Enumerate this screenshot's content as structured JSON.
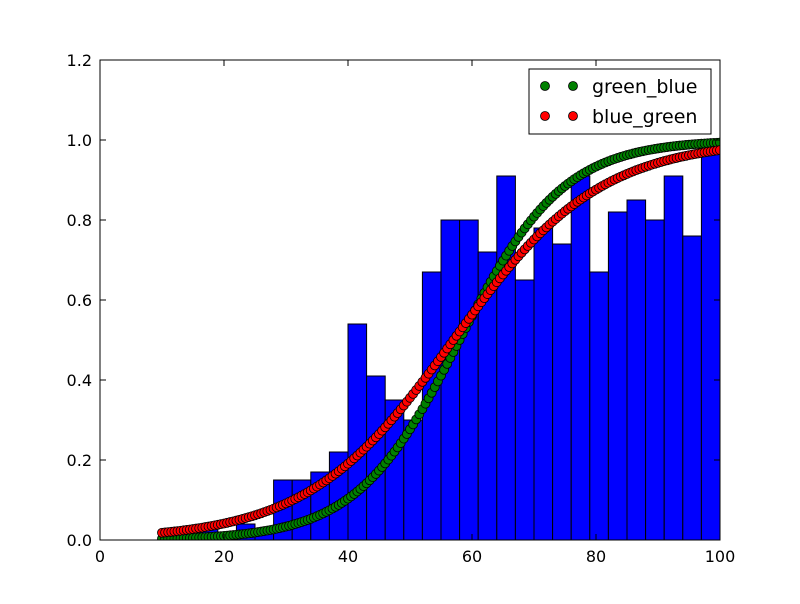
{
  "chart_data": {
    "type": "bar",
    "title": "",
    "xlabel": "",
    "ylabel": "",
    "xlim": [
      0,
      100
    ],
    "ylim": [
      0,
      1.2
    ],
    "x_ticks": [
      "0",
      "20",
      "40",
      "60",
      "80",
      "100"
    ],
    "y_ticks": [
      "0.0",
      "0.2",
      "0.4",
      "0.6",
      "0.8",
      "1.0",
      "1.2"
    ],
    "grid": false,
    "legend_position": "top-right",
    "histogram": {
      "name": "",
      "color": "#0000ff",
      "bin_width": 3,
      "x_start": [
        10,
        13,
        16,
        19,
        22,
        25,
        28,
        31,
        34,
        37,
        40,
        43,
        46,
        49,
        52,
        55,
        58,
        61,
        64,
        67,
        70,
        73,
        76,
        79,
        82,
        85,
        88,
        91,
        94,
        97
      ],
      "values": [
        0.02,
        0.02,
        0.04,
        0.02,
        0.04,
        0.02,
        0.15,
        0.15,
        0.17,
        0.22,
        0.54,
        0.41,
        0.35,
        0.3,
        0.67,
        0.8,
        0.8,
        0.72,
        0.91,
        0.65,
        0.78,
        0.74,
        0.91,
        0.67,
        0.82,
        0.85,
        0.8,
        0.91,
        0.76,
        1.0
      ]
    },
    "series": [
      {
        "name": "green_blue",
        "color": "#008000",
        "marker": "circle",
        "curve": "logistic",
        "x_range": [
          10,
          100
        ],
        "point_count": 181,
        "midpoint": 58,
        "slope": 0.12
      },
      {
        "name": "blue_green",
        "color": "#ff0000",
        "marker": "circle",
        "curve": "logistic",
        "x_range": [
          10,
          100
        ],
        "point_count": 181,
        "midpoint": 57,
        "slope": 0.085
      }
    ]
  }
}
